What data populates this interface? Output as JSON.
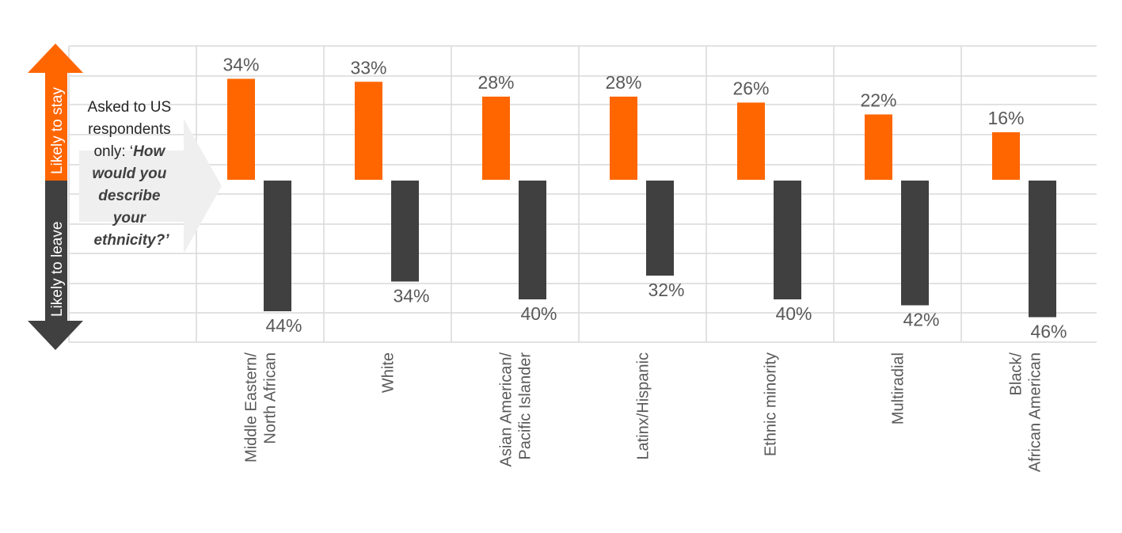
{
  "chart_data": {
    "type": "bar",
    "title": "",
    "categories": [
      [
        "Middle Eastern/",
        "North African"
      ],
      [
        "White"
      ],
      [
        "Asian American/",
        "Pacific Islander"
      ],
      [
        "Latinx/Hispanic"
      ],
      [
        "Ethnic minority"
      ],
      [
        "Multiradial"
      ],
      [
        "Black/",
        "African American"
      ]
    ],
    "series": [
      {
        "name": "Likely to stay",
        "color": "#ff6600",
        "direction": "up",
        "values": [
          34,
          33,
          28,
          28,
          26,
          22,
          16
        ],
        "labels": [
          "34%",
          "33%",
          "28%",
          "28%",
          "26%",
          "22%",
          "16%"
        ]
      },
      {
        "name": "Likely to leave",
        "color": "#404040",
        "direction": "down",
        "values": [
          44,
          34,
          40,
          32,
          40,
          42,
          46
        ],
        "labels": [
          "44%",
          "34%",
          "40%",
          "32%",
          "40%",
          "42%",
          "46%"
        ]
      }
    ],
    "ylim": [
      -50,
      50
    ],
    "grid": true,
    "xlabel": "",
    "ylabel": ""
  },
  "axis_arrow": {
    "up_label": "Likely to stay",
    "down_label": "Likely to leave"
  },
  "question": {
    "lines": [
      "Asked to US",
      "respondents",
      "only: ‘",
      "How",
      "would you",
      "describe",
      "your",
      "ethnicity?’"
    ]
  },
  "colors": {
    "stay": "#ff6600",
    "leave": "#404040",
    "grid": "#d9d9d9",
    "text": "#595959"
  }
}
